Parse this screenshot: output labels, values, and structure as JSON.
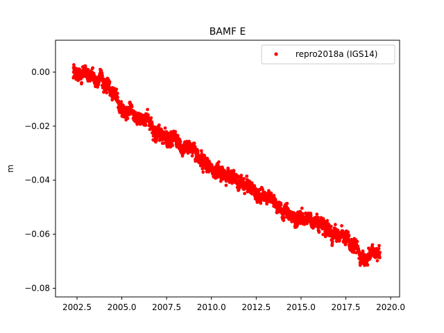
{
  "chart_data": {
    "type": "scatter",
    "title": "BAMF E",
    "xlabel": "",
    "ylabel": "m",
    "xlim": [
      2001.3,
      2020.5
    ],
    "ylim": [
      -0.0832,
      0.0118
    ],
    "x_ticks": [
      2002.5,
      2005.0,
      2007.5,
      2010.0,
      2012.5,
      2015.0,
      2017.5,
      2020.0
    ],
    "x_tick_labels": [
      "2002.5",
      "2005.0",
      "2007.5",
      "2010.0",
      "2012.5",
      "2015.0",
      "2017.5",
      "2020.0"
    ],
    "y_ticks": [
      0.0,
      -0.02,
      -0.04,
      -0.06,
      -0.08
    ],
    "y_tick_labels": [
      "0.00",
      "−0.02",
      "−0.04",
      "−0.06",
      "−0.08"
    ],
    "grid": false,
    "legend": "top-right",
    "series": [
      {
        "name": "repro2018a (IGS14)",
        "color": "#ff0000",
        "marker": "point",
        "x_start": 2002.3,
        "x_end": 2019.4,
        "trend_points": [
          {
            "x": 2002.3,
            "y": 0.0
          },
          {
            "x": 2003.0,
            "y": 0.0
          },
          {
            "x": 2004.0,
            "y": -0.004
          },
          {
            "x": 2005.0,
            "y": -0.013
          },
          {
            "x": 2006.0,
            "y": -0.017
          },
          {
            "x": 2007.0,
            "y": -0.022
          },
          {
            "x": 2008.0,
            "y": -0.026
          },
          {
            "x": 2009.0,
            "y": -0.03
          },
          {
            "x": 2010.0,
            "y": -0.035
          },
          {
            "x": 2011.0,
            "y": -0.039
          },
          {
            "x": 2012.0,
            "y": -0.041
          },
          {
            "x": 2013.0,
            "y": -0.046
          },
          {
            "x": 2014.0,
            "y": -0.05
          },
          {
            "x": 2015.0,
            "y": -0.054
          },
          {
            "x": 2016.0,
            "y": -0.057
          },
          {
            "x": 2017.0,
            "y": -0.06
          },
          {
            "x": 2018.0,
            "y": -0.064
          },
          {
            "x": 2018.5,
            "y": -0.07
          },
          {
            "x": 2019.0,
            "y": -0.067
          },
          {
            "x": 2019.4,
            "y": -0.066
          }
        ],
        "scatter_spread": 0.004
      }
    ]
  }
}
